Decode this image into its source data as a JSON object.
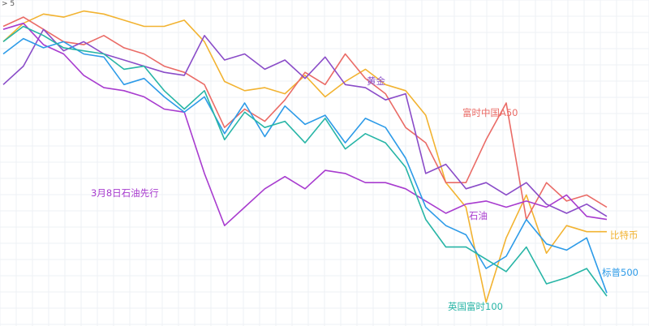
{
  "top_label": "> 5",
  "chart_data": {
    "type": "line",
    "title": "",
    "xlabel": "",
    "ylabel": "",
    "grid": true,
    "x": [
      0,
      5,
      10,
      15,
      20,
      25,
      30,
      35,
      40,
      45,
      50,
      55,
      60,
      65,
      70,
      75,
      80,
      85,
      90,
      95,
      100,
      105,
      110,
      115,
      120,
      125,
      130,
      135,
      140,
      145,
      150
    ],
    "ylim": [
      0,
      100
    ],
    "series": [
      {
        "name": "比特币",
        "color": "#f2b331",
        "values": [
          88,
          94,
          97,
          96,
          98,
          97,
          95,
          93,
          93,
          95,
          88,
          75,
          72,
          73,
          71,
          77,
          70,
          75,
          79,
          74,
          72,
          64,
          42,
          34,
          3,
          24,
          38,
          19,
          28,
          26,
          26
        ]
      },
      {
        "name": "富时中国A50",
        "color": "#ea6b66",
        "values": [
          93,
          96,
          92,
          88,
          87,
          90,
          86,
          84,
          80,
          78,
          74,
          60,
          66,
          62,
          69,
          78,
          74,
          84,
          76,
          71,
          60,
          55,
          42,
          42,
          56,
          68,
          30,
          42,
          36,
          38,
          34
        ]
      },
      {
        "name": "黄金",
        "color": "#8a4cc8",
        "values": [
          74,
          80,
          92,
          85,
          88,
          84,
          82,
          80,
          78,
          77,
          90,
          82,
          84,
          79,
          82,
          76,
          83,
          74,
          73,
          69,
          71,
          45,
          48,
          40,
          42,
          38,
          42,
          35,
          32,
          35,
          31
        ]
      },
      {
        "name": "石油",
        "color": "#a83ccf",
        "values": [
          92,
          94,
          87,
          84,
          77,
          73,
          72,
          70,
          66,
          65,
          45,
          28,
          34,
          40,
          44,
          40,
          46,
          45,
          42,
          42,
          40,
          36,
          32,
          35,
          36,
          34,
          36,
          34,
          38,
          31,
          30
        ]
      },
      {
        "name": "标普500",
        "color": "#2d9be8",
        "values": [
          84,
          89,
          86,
          88,
          84,
          83,
          74,
          76,
          70,
          65,
          70,
          58,
          68,
          57,
          67,
          61,
          64,
          55,
          63,
          60,
          50,
          34,
          28,
          25,
          14,
          18,
          30,
          22,
          20,
          24,
          6
        ]
      },
      {
        "name": "英国富时100",
        "color": "#27b5a6",
        "values": [
          88,
          93,
          90,
          86,
          85,
          84,
          79,
          80,
          72,
          66,
          72,
          56,
          65,
          60,
          62,
          55,
          63,
          53,
          58,
          55,
          47,
          30,
          21,
          21,
          17,
          13,
          21,
          9,
          11,
          14,
          5
        ]
      }
    ],
    "annotations": [
      {
        "text": "3月8日石油先行",
        "series": "石油"
      }
    ]
  }
}
